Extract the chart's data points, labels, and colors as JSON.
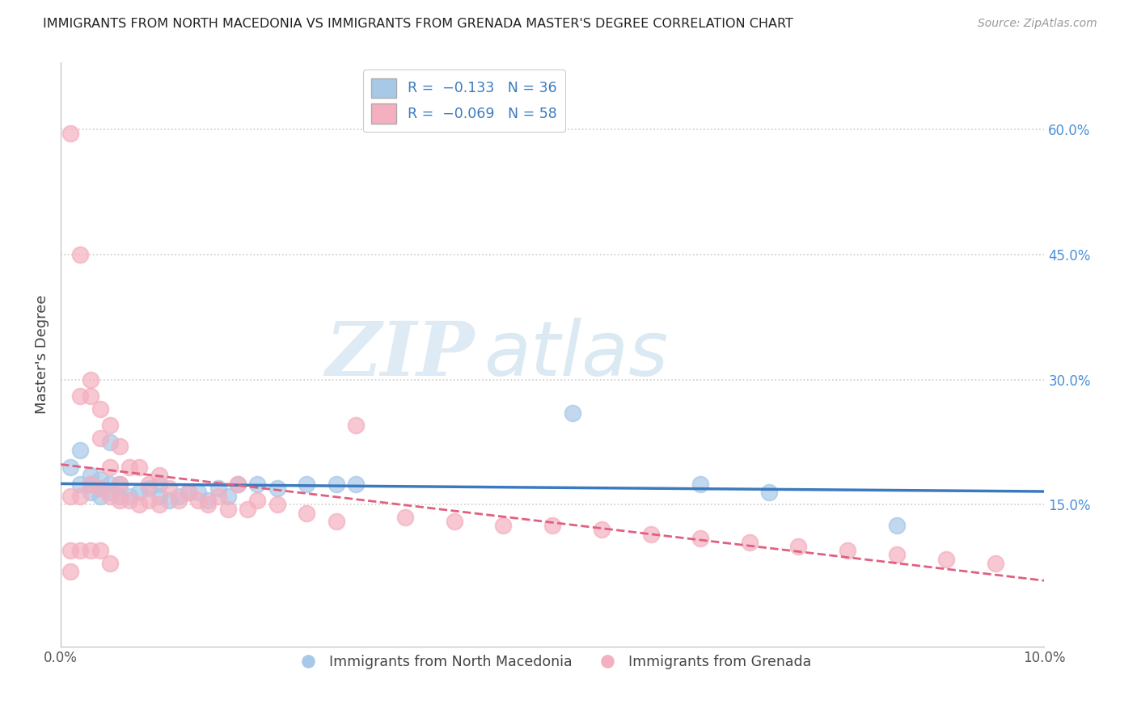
{
  "title": "IMMIGRANTS FROM NORTH MACEDONIA VS IMMIGRANTS FROM GRENADA MASTER'S DEGREE CORRELATION CHART",
  "source": "Source: ZipAtlas.com",
  "ylabel": "Master's Degree",
  "ytick_labels": [
    "15.0%",
    "30.0%",
    "45.0%",
    "60.0%"
  ],
  "ytick_values": [
    0.15,
    0.3,
    0.45,
    0.6
  ],
  "xlim": [
    0.0,
    0.1
  ],
  "ylim": [
    -0.02,
    0.68
  ],
  "color_blue": "#a8c8e8",
  "color_pink": "#f4b0c0",
  "line_color_blue": "#3a7abf",
  "line_color_pink": "#e06080",
  "watermark_zip": "ZIP",
  "watermark_atlas": "atlas",
  "series1_name": "Immigrants from North Macedonia",
  "series2_name": "Immigrants from Grenada",
  "blue_scatter_x": [
    0.001,
    0.002,
    0.002,
    0.003,
    0.003,
    0.003,
    0.004,
    0.004,
    0.004,
    0.005,
    0.005,
    0.005,
    0.006,
    0.006,
    0.007,
    0.008,
    0.009,
    0.01,
    0.01,
    0.011,
    0.012,
    0.013,
    0.014,
    0.015,
    0.016,
    0.017,
    0.018,
    0.02,
    0.022,
    0.025,
    0.028,
    0.03,
    0.052,
    0.065,
    0.072,
    0.085
  ],
  "blue_scatter_y": [
    0.195,
    0.175,
    0.215,
    0.165,
    0.175,
    0.185,
    0.16,
    0.17,
    0.18,
    0.165,
    0.175,
    0.225,
    0.16,
    0.175,
    0.16,
    0.165,
    0.17,
    0.16,
    0.175,
    0.155,
    0.16,
    0.165,
    0.165,
    0.155,
    0.17,
    0.16,
    0.175,
    0.175,
    0.17,
    0.175,
    0.175,
    0.175,
    0.26,
    0.175,
    0.165,
    0.125
  ],
  "pink_scatter_x": [
    0.001,
    0.001,
    0.001,
    0.001,
    0.002,
    0.002,
    0.002,
    0.002,
    0.003,
    0.003,
    0.003,
    0.003,
    0.004,
    0.004,
    0.004,
    0.004,
    0.005,
    0.005,
    0.005,
    0.005,
    0.006,
    0.006,
    0.006,
    0.007,
    0.007,
    0.008,
    0.008,
    0.009,
    0.009,
    0.01,
    0.01,
    0.011,
    0.012,
    0.013,
    0.014,
    0.015,
    0.016,
    0.017,
    0.018,
    0.019,
    0.02,
    0.022,
    0.025,
    0.028,
    0.03,
    0.035,
    0.04,
    0.045,
    0.05,
    0.055,
    0.06,
    0.065,
    0.07,
    0.075,
    0.08,
    0.085,
    0.09,
    0.095
  ],
  "pink_scatter_y": [
    0.595,
    0.16,
    0.095,
    0.07,
    0.45,
    0.28,
    0.16,
    0.095,
    0.3,
    0.28,
    0.175,
    0.095,
    0.265,
    0.23,
    0.17,
    0.095,
    0.245,
    0.195,
    0.16,
    0.08,
    0.22,
    0.175,
    0.155,
    0.195,
    0.155,
    0.195,
    0.15,
    0.175,
    0.155,
    0.185,
    0.15,
    0.17,
    0.155,
    0.165,
    0.155,
    0.15,
    0.16,
    0.145,
    0.175,
    0.145,
    0.155,
    0.15,
    0.14,
    0.13,
    0.245,
    0.135,
    0.13,
    0.125,
    0.125,
    0.12,
    0.115,
    0.11,
    0.105,
    0.1,
    0.095,
    0.09,
    0.085,
    0.08
  ]
}
